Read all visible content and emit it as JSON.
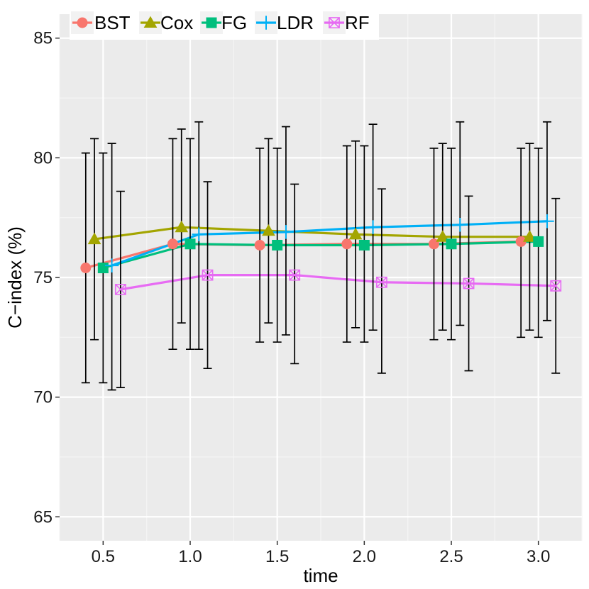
{
  "chart_data": {
    "type": "line",
    "title": "",
    "xlabel": "time",
    "ylabel": "C−index (%)",
    "xlim": [
      0.25,
      3.25
    ],
    "ylim": [
      64,
      86
    ],
    "x_ticks": [
      0.5,
      1.0,
      1.5,
      2.0,
      2.5,
      3.0
    ],
    "x_tick_labels": [
      "0.5",
      "1.0",
      "1.5",
      "2.0",
      "2.5",
      "3.0"
    ],
    "y_ticks": [
      65,
      70,
      75,
      80,
      85
    ],
    "y_tick_labels": [
      "65",
      "70",
      "75",
      "80",
      "85"
    ],
    "x": [
      0.5,
      1.0,
      1.5,
      2.0,
      2.5,
      3.0
    ],
    "dodge_offsets": [
      -0.1,
      -0.05,
      0.0,
      0.05,
      0.1
    ],
    "legend_position": "top-left",
    "series": [
      {
        "name": "BST",
        "color": "#F8766D",
        "marker": "circle",
        "values": [
          75.4,
          76.4,
          76.35,
          76.4,
          76.4,
          76.5
        ],
        "lower": [
          70.6,
          72.0,
          72.3,
          72.3,
          72.4,
          72.5
        ],
        "upper": [
          80.2,
          80.8,
          80.4,
          80.5,
          80.4,
          80.4
        ]
      },
      {
        "name": "Cox",
        "color": "#A3A500",
        "marker": "triangle",
        "values": [
          76.6,
          77.1,
          76.95,
          76.8,
          76.7,
          76.7
        ],
        "lower": [
          72.4,
          73.1,
          73.1,
          72.9,
          72.8,
          72.8
        ],
        "upper": [
          80.8,
          81.2,
          80.8,
          80.7,
          80.6,
          80.6
        ]
      },
      {
        "name": "FG",
        "color": "#00BF7D",
        "marker": "square",
        "values": [
          75.4,
          76.4,
          76.35,
          76.35,
          76.4,
          76.5
        ],
        "lower": [
          70.6,
          72.0,
          72.3,
          72.3,
          72.4,
          72.5
        ],
        "upper": [
          80.2,
          80.8,
          80.4,
          80.5,
          80.4,
          80.4
        ]
      },
      {
        "name": "LDR",
        "color": "#00B0F6",
        "marker": "plus",
        "values": [
          75.5,
          76.8,
          76.9,
          77.1,
          77.2,
          77.35
        ],
        "lower": [
          70.3,
          72.0,
          72.6,
          72.8,
          73.0,
          73.2
        ],
        "upper": [
          80.6,
          81.5,
          81.3,
          81.4,
          81.5,
          81.5
        ]
      },
      {
        "name": "RF",
        "color": "#E76BF3",
        "marker": "boxx",
        "values": [
          74.5,
          75.1,
          75.1,
          74.8,
          74.75,
          74.65
        ],
        "lower": [
          70.4,
          71.2,
          71.4,
          71.0,
          71.1,
          71.0
        ],
        "upper": [
          78.6,
          79.0,
          78.9,
          78.7,
          78.4,
          78.3
        ]
      }
    ]
  }
}
